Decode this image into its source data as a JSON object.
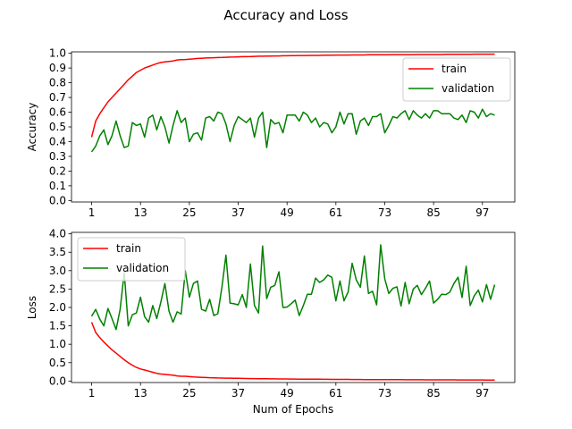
{
  "figure": {
    "title": "Accuracy and Loss"
  },
  "chart_data": [
    {
      "type": "line",
      "ylabel": "Accuracy",
      "xlabel": "",
      "xlim": [
        1,
        100
      ],
      "ylim": [
        0.0,
        1.0
      ],
      "xticks": [
        1,
        13,
        25,
        37,
        49,
        61,
        73,
        85,
        97
      ],
      "yticks": [
        "0.0",
        "0.1",
        "0.2",
        "0.3",
        "0.4",
        "0.5",
        "0.6",
        "0.7",
        "0.8",
        "0.9",
        "1.0"
      ],
      "grid": false,
      "legend_position": "upper-right",
      "x": [
        1,
        2,
        3,
        4,
        5,
        6,
        7,
        8,
        9,
        10,
        11,
        12,
        13,
        14,
        15,
        16,
        17,
        18,
        19,
        20,
        21,
        22,
        23,
        24,
        25,
        26,
        27,
        28,
        29,
        30,
        31,
        32,
        33,
        34,
        35,
        36,
        37,
        38,
        39,
        40,
        41,
        42,
        43,
        44,
        45,
        46,
        47,
        48,
        49,
        50,
        51,
        52,
        53,
        54,
        55,
        56,
        57,
        58,
        59,
        60,
        61,
        62,
        63,
        64,
        65,
        66,
        67,
        68,
        69,
        70,
        71,
        72,
        73,
        74,
        75,
        76,
        77,
        78,
        79,
        80,
        81,
        82,
        83,
        84,
        85,
        86,
        87,
        88,
        89,
        90,
        91,
        92,
        93,
        94,
        95,
        96,
        97,
        98,
        99,
        100
      ],
      "series": [
        {
          "name": "train",
          "color": "#ff0000",
          "values": [
            0.43,
            0.54,
            0.59,
            0.63,
            0.67,
            0.7,
            0.73,
            0.76,
            0.79,
            0.82,
            0.845,
            0.87,
            0.885,
            0.9,
            0.91,
            0.92,
            0.93,
            0.938,
            0.942,
            0.945,
            0.948,
            0.955,
            0.957,
            0.958,
            0.96,
            0.962,
            0.965,
            0.966,
            0.968,
            0.969,
            0.97,
            0.971,
            0.972,
            0.973,
            0.974,
            0.975,
            0.976,
            0.977,
            0.977,
            0.978,
            0.979,
            0.98,
            0.98,
            0.981,
            0.981,
            0.982,
            0.982,
            0.983,
            0.983,
            0.984,
            0.984,
            0.985,
            0.985,
            0.985,
            0.986,
            0.986,
            0.986,
            0.987,
            0.987,
            0.987,
            0.988,
            0.988,
            0.988,
            0.988,
            0.989,
            0.989,
            0.989,
            0.989,
            0.99,
            0.99,
            0.99,
            0.99,
            0.99,
            0.99,
            0.991,
            0.991,
            0.991,
            0.991,
            0.991,
            0.991,
            0.992,
            0.992,
            0.992,
            0.992,
            0.992,
            0.992,
            0.992,
            0.993,
            0.993,
            0.993,
            0.993,
            0.993,
            0.993,
            0.993,
            0.994,
            0.994,
            0.994,
            0.994,
            0.994,
            0.994
          ]
        },
        {
          "name": "validation",
          "color": "#008000",
          "values": [
            0.33,
            0.37,
            0.44,
            0.48,
            0.38,
            0.44,
            0.54,
            0.44,
            0.36,
            0.37,
            0.53,
            0.51,
            0.52,
            0.43,
            0.56,
            0.58,
            0.48,
            0.57,
            0.5,
            0.39,
            0.51,
            0.61,
            0.53,
            0.56,
            0.4,
            0.45,
            0.46,
            0.41,
            0.56,
            0.57,
            0.54,
            0.6,
            0.59,
            0.52,
            0.4,
            0.51,
            0.57,
            0.55,
            0.53,
            0.56,
            0.43,
            0.56,
            0.6,
            0.36,
            0.55,
            0.52,
            0.53,
            0.46,
            0.58,
            0.58,
            0.58,
            0.54,
            0.6,
            0.58,
            0.53,
            0.56,
            0.5,
            0.53,
            0.52,
            0.46,
            0.5,
            0.6,
            0.52,
            0.59,
            0.59,
            0.45,
            0.54,
            0.56,
            0.51,
            0.57,
            0.57,
            0.59,
            0.46,
            0.51,
            0.57,
            0.56,
            0.59,
            0.61,
            0.55,
            0.61,
            0.58,
            0.56,
            0.59,
            0.56,
            0.61,
            0.61,
            0.59,
            0.59,
            0.59,
            0.56,
            0.55,
            0.58,
            0.53,
            0.61,
            0.6,
            0.56,
            0.62,
            0.57,
            0.59,
            0.58
          ]
        }
      ]
    },
    {
      "type": "line",
      "ylabel": "Loss",
      "xlabel": "Num of Epochs",
      "xlim": [
        1,
        100
      ],
      "ylim": [
        0.0,
        4.0
      ],
      "xticks": [
        1,
        13,
        25,
        37,
        49,
        61,
        73,
        85,
        97
      ],
      "yticks": [
        "0.0",
        "0.5",
        "1.0",
        "1.5",
        "2.0",
        "2.5",
        "3.0",
        "3.5",
        "4.0"
      ],
      "grid": false,
      "legend_position": "upper-left",
      "x": [
        1,
        2,
        3,
        4,
        5,
        6,
        7,
        8,
        9,
        10,
        11,
        12,
        13,
        14,
        15,
        16,
        17,
        18,
        19,
        20,
        21,
        22,
        23,
        24,
        25,
        26,
        27,
        28,
        29,
        30,
        31,
        32,
        33,
        34,
        35,
        36,
        37,
        38,
        39,
        40,
        41,
        42,
        43,
        44,
        45,
        46,
        47,
        48,
        49,
        50,
        51,
        52,
        53,
        54,
        55,
        56,
        57,
        58,
        59,
        60,
        61,
        62,
        63,
        64,
        65,
        66,
        67,
        68,
        69,
        70,
        71,
        72,
        73,
        74,
        75,
        76,
        77,
        78,
        79,
        80,
        81,
        82,
        83,
        84,
        85,
        86,
        87,
        88,
        89,
        90,
        91,
        92,
        93,
        94,
        95,
        96,
        97,
        98,
        99,
        100
      ],
      "series": [
        {
          "name": "train",
          "color": "#ff0000",
          "values": [
            1.6,
            1.32,
            1.18,
            1.06,
            0.95,
            0.85,
            0.76,
            0.67,
            0.58,
            0.5,
            0.43,
            0.37,
            0.33,
            0.3,
            0.27,
            0.24,
            0.21,
            0.19,
            0.18,
            0.17,
            0.16,
            0.14,
            0.13,
            0.13,
            0.12,
            0.11,
            0.105,
            0.1,
            0.095,
            0.09,
            0.088,
            0.085,
            0.082,
            0.08,
            0.078,
            0.076,
            0.074,
            0.072,
            0.07,
            0.068,
            0.066,
            0.064,
            0.063,
            0.062,
            0.06,
            0.059,
            0.058,
            0.057,
            0.056,
            0.055,
            0.054,
            0.053,
            0.052,
            0.051,
            0.05,
            0.05,
            0.049,
            0.048,
            0.047,
            0.046,
            0.046,
            0.045,
            0.044,
            0.044,
            0.043,
            0.042,
            0.042,
            0.041,
            0.041,
            0.04,
            0.04,
            0.039,
            0.039,
            0.038,
            0.038,
            0.037,
            0.037,
            0.036,
            0.036,
            0.035,
            0.035,
            0.035,
            0.034,
            0.034,
            0.033,
            0.033,
            0.033,
            0.032,
            0.032,
            0.032,
            0.031,
            0.031,
            0.031,
            0.03,
            0.03,
            0.03,
            0.03,
            0.029,
            0.029,
            0.029
          ]
        },
        {
          "name": "validation",
          "color": "#008000",
          "values": [
            1.76,
            1.95,
            1.68,
            1.5,
            1.97,
            1.7,
            1.4,
            1.95,
            2.95,
            1.5,
            1.8,
            1.85,
            2.28,
            1.75,
            1.6,
            2.05,
            1.7,
            2.15,
            2.65,
            1.9,
            1.6,
            1.88,
            1.82,
            3.0,
            2.28,
            2.65,
            2.72,
            1.95,
            1.9,
            2.22,
            1.78,
            1.83,
            2.55,
            3.42,
            2.12,
            2.1,
            2.07,
            2.35,
            2.0,
            3.18,
            2.05,
            1.85,
            3.67,
            2.24,
            2.55,
            2.6,
            2.97,
            2.0,
            2.01,
            2.1,
            2.2,
            1.78,
            2.05,
            2.36,
            2.36,
            2.8,
            2.68,
            2.75,
            2.88,
            2.82,
            2.18,
            2.72,
            2.18,
            2.42,
            3.2,
            2.75,
            2.55,
            3.4,
            2.38,
            2.44,
            2.07,
            3.7,
            2.78,
            2.38,
            2.52,
            2.56,
            2.04,
            2.68,
            2.1,
            2.5,
            2.6,
            2.35,
            2.52,
            2.72,
            2.12,
            2.22,
            2.36,
            2.35,
            2.42,
            2.65,
            2.82,
            2.27,
            3.12,
            2.05,
            2.32,
            2.47,
            2.15,
            2.62,
            2.22,
            2.62
          ]
        }
      ]
    }
  ]
}
